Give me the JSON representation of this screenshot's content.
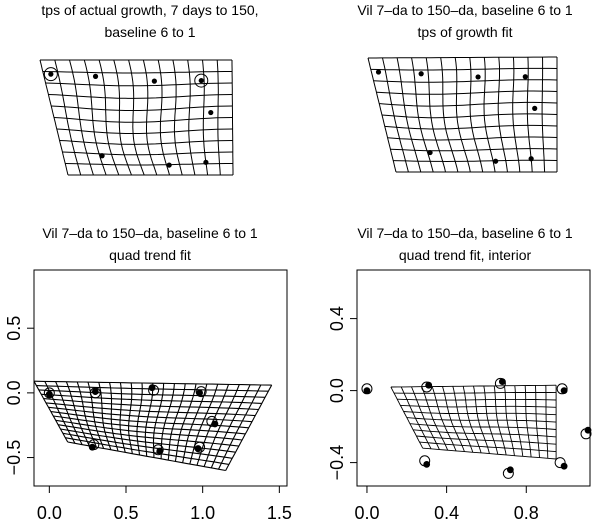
{
  "chart_data": [
    {
      "id": "tl",
      "type": "deformation-grid",
      "title": [
        "tps of actual growth, 7 days to 150,",
        "baseline 6  to  1"
      ],
      "axes": false,
      "landmarks": [
        [
          -0.05,
          0.18
        ],
        [
          0.25,
          0.17
        ],
        [
          0.65,
          0.13
        ],
        [
          0.98,
          0.12
        ],
        [
          1.05,
          -0.2
        ],
        [
          0.22,
          -0.62
        ],
        [
          0.72,
          -0.72
        ],
        [
          1.0,
          -0.7
        ]
      ],
      "circled_landmarks": [
        0,
        3
      ]
    },
    {
      "id": "tr",
      "type": "deformation-grid",
      "title": [
        "Vil 7–da to 150–da, baseline 6  to  1",
        "tps of growth fit"
      ],
      "axes": false,
      "landmarks": [
        [
          -0.05,
          0.18
        ],
        [
          0.25,
          0.17
        ],
        [
          0.65,
          0.13
        ],
        [
          0.98,
          0.12
        ],
        [
          1.05,
          -0.2
        ],
        [
          0.22,
          -0.62
        ],
        [
          0.72,
          -0.72
        ],
        [
          1.0,
          -0.7
        ]
      ]
    },
    {
      "id": "bl",
      "type": "deformation-grid",
      "title": [
        "Vil 7–da to 150–da, baseline 6  to  1",
        "quad trend fit"
      ],
      "xticks": [
        "0.0",
        "0.5",
        "1.0",
        "1.5"
      ],
      "yticks": [
        "−0.5",
        "0.0",
        "0.5"
      ],
      "xlim": [
        -0.1,
        1.55
      ],
      "ylim": [
        -0.72,
        0.95
      ],
      "landmarks": [
        [
          0.0,
          -0.01
        ],
        [
          0.3,
          0.01
        ],
        [
          0.67,
          0.04
        ],
        [
          0.98,
          0.0
        ],
        [
          1.08,
          -0.24
        ],
        [
          0.28,
          -0.42
        ],
        [
          0.72,
          -0.45
        ],
        [
          0.97,
          -0.43
        ]
      ],
      "fitted": [
        [
          0.0,
          0.0
        ],
        [
          0.3,
          0.0
        ],
        [
          0.68,
          0.02
        ],
        [
          0.99,
          0.01
        ],
        [
          1.06,
          -0.22
        ],
        [
          0.29,
          -0.4
        ],
        [
          0.71,
          -0.44
        ],
        [
          0.98,
          -0.42
        ]
      ]
    },
    {
      "id": "br",
      "type": "deformation-grid",
      "title": [
        "Vil 7–da to 150–da, baseline 6  to  1",
        "quad trend fit, interior"
      ],
      "xticks": [
        "0.0",
        "0.4",
        "0.8"
      ],
      "yticks": [
        "−0.4",
        "0.0",
        "0.4"
      ],
      "xlim": [
        -0.05,
        1.12
      ],
      "ylim": [
        -0.53,
        0.67
      ],
      "landmarks": [
        [
          0.0,
          0.0
        ],
        [
          0.31,
          0.03
        ],
        [
          0.68,
          0.05
        ],
        [
          0.99,
          0.0
        ],
        [
          1.11,
          -0.22
        ],
        [
          0.3,
          -0.41
        ],
        [
          0.72,
          -0.44
        ],
        [
          0.99,
          -0.42
        ]
      ],
      "fitted": [
        [
          0.0,
          0.01
        ],
        [
          0.3,
          0.02
        ],
        [
          0.67,
          0.04
        ],
        [
          0.98,
          0.01
        ],
        [
          1.1,
          -0.24
        ],
        [
          0.29,
          -0.39
        ],
        [
          0.71,
          -0.46
        ],
        [
          0.97,
          -0.4
        ]
      ]
    }
  ]
}
